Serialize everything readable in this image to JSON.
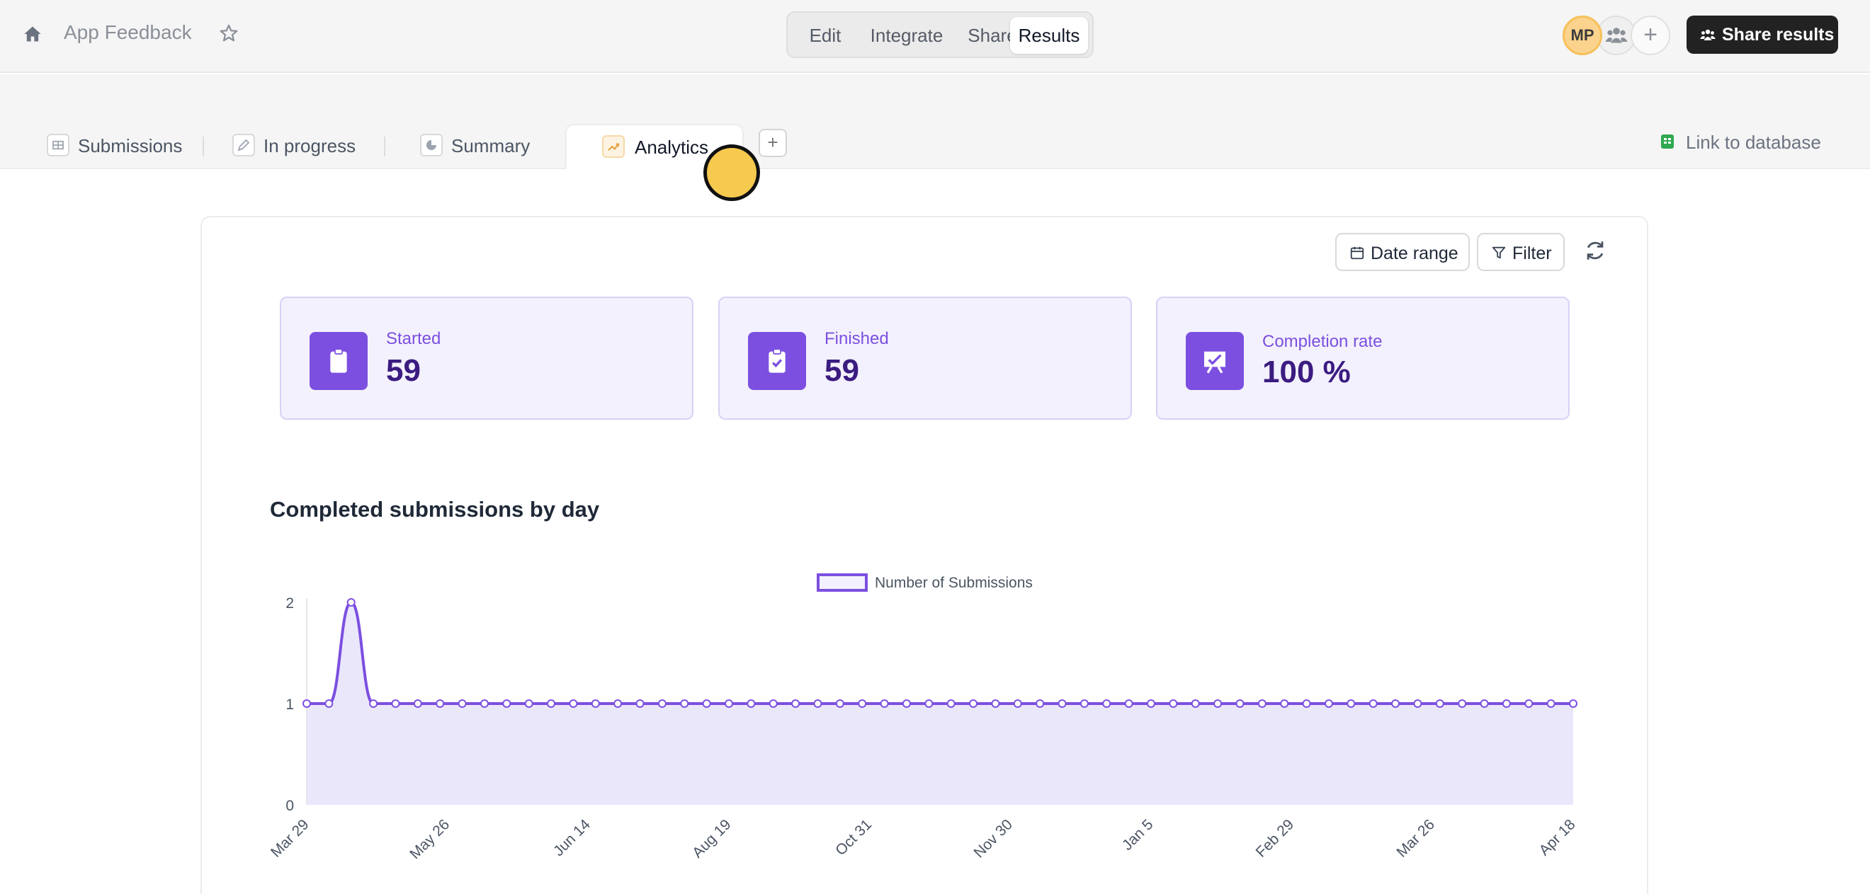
{
  "header": {
    "title": "App Feedback",
    "nav": [
      "Edit",
      "Integrate",
      "Share",
      "Results"
    ],
    "active_nav": "Results",
    "avatar_initials": "MP",
    "add_symbol": "+",
    "share_label": "Share results"
  },
  "tabs": {
    "items": [
      {
        "label": "Submissions",
        "icon": "table-icon"
      },
      {
        "label": "In progress",
        "icon": "edit-icon"
      },
      {
        "label": "Summary",
        "icon": "pie-icon"
      },
      {
        "label": "Analytics",
        "icon": "trend-icon"
      }
    ],
    "active": "Analytics",
    "add_symbol": "+",
    "link_database": "Link to database"
  },
  "toolbar": {
    "date_range": "Date range",
    "filter": "Filter"
  },
  "stats": [
    {
      "label": "Started",
      "value": "59",
      "icon": "clipboard-icon"
    },
    {
      "label": "Finished",
      "value": "59",
      "icon": "clipboard-check-icon"
    },
    {
      "label": "Completion rate",
      "value": "100 %",
      "icon": "presentation-check-icon"
    }
  ],
  "colors": {
    "accent": "#7c4fe0",
    "accent_dark": "#3b1c80",
    "fill": "#ebe7fb"
  },
  "chart_data": {
    "type": "area",
    "title": "Completed submissions by day",
    "legend": "Number of Submissions",
    "legend_position": "top-center",
    "ylim": [
      0,
      2
    ],
    "yticks": [
      0,
      1,
      2
    ],
    "xtick_labels": [
      "Mar 29",
      "May 26",
      "Jun 14",
      "Aug 19",
      "Oct 31",
      "Nov 30",
      "Jan 5",
      "Feb 29",
      "Mar 26",
      "Apr 18"
    ],
    "values": [
      1,
      1,
      2,
      1,
      1,
      1,
      1,
      1,
      1,
      1,
      1,
      1,
      1,
      1,
      1,
      1,
      1,
      1,
      1,
      1,
      1,
      1,
      1,
      1,
      1,
      1,
      1,
      1,
      1,
      1,
      1,
      1,
      1,
      1,
      1,
      1,
      1,
      1,
      1,
      1,
      1,
      1,
      1,
      1,
      1,
      1,
      1,
      1,
      1,
      1,
      1,
      1,
      1,
      1,
      1,
      1,
      1,
      1
    ],
    "grid": false
  }
}
